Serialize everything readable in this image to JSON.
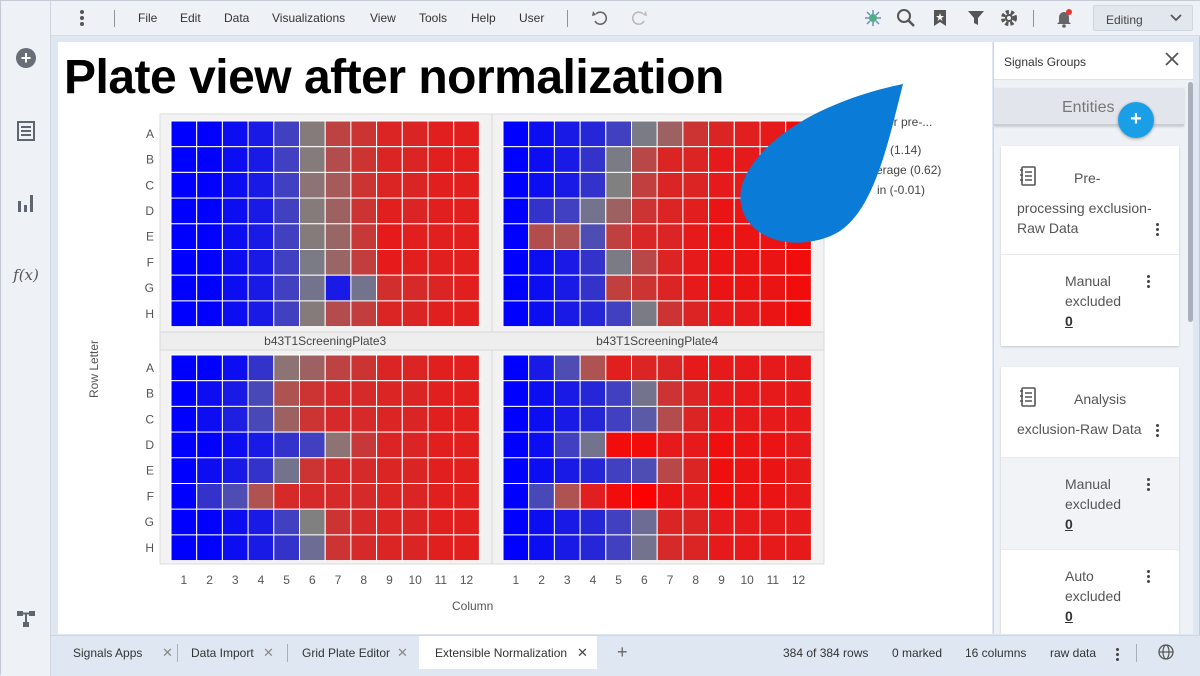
{
  "menu": {
    "items": [
      "File",
      "Edit",
      "Data",
      "Visualizations",
      "View",
      "Tools",
      "Help",
      "User"
    ],
    "mode_label": "Editing"
  },
  "icons": {
    "left": [
      "add-icon",
      "data-table-icon",
      "bar-chart-icon",
      "function-icon",
      "flow-icon"
    ],
    "toolbar": [
      "undo-icon",
      "redo-icon",
      "ai-icon",
      "search-icon",
      "bookmark-icon",
      "filter-icon",
      "settings-icon",
      "notification-icon"
    ],
    "function_glyph": "f(x)"
  },
  "visualization": {
    "title": "Plate view after normalization",
    "y_axis_label": "Row Letter",
    "x_axis_label": "Column",
    "legend_fragments": [
      "er pre-...",
      "(1.14)",
      "erage (0.62)",
      "in (-0.01)"
    ]
  },
  "chart_data": {
    "type": "heatmap",
    "rows": [
      "A",
      "B",
      "C",
      "D",
      "E",
      "F",
      "G",
      "H"
    ],
    "columns": [
      "1",
      "2",
      "3",
      "4",
      "5",
      "6",
      "7",
      "8",
      "9",
      "10",
      "11",
      "12"
    ],
    "color_scale": {
      "min": "#0000ff",
      "mid": "#808080",
      "max": "#ff0000"
    },
    "panels": [
      {
        "label": "",
        "grid": [
          [
            0.0,
            0.0,
            0.05,
            0.1,
            0.25,
            0.52,
            0.74,
            0.8,
            0.86,
            0.86,
            0.88,
            0.88
          ],
          [
            0.0,
            0.0,
            0.05,
            0.1,
            0.25,
            0.52,
            0.7,
            0.8,
            0.86,
            0.86,
            0.88,
            0.88
          ],
          [
            0.0,
            0.0,
            0.05,
            0.1,
            0.25,
            0.55,
            0.65,
            0.8,
            0.86,
            0.86,
            0.88,
            0.88
          ],
          [
            0.0,
            0.0,
            0.05,
            0.1,
            0.25,
            0.52,
            0.62,
            0.8,
            0.88,
            0.86,
            0.88,
            0.88
          ],
          [
            0.0,
            0.0,
            0.05,
            0.1,
            0.25,
            0.52,
            0.6,
            0.78,
            0.9,
            0.88,
            0.88,
            0.88
          ],
          [
            0.0,
            0.0,
            0.05,
            0.1,
            0.25,
            0.48,
            0.6,
            0.76,
            0.9,
            0.88,
            0.88,
            0.88
          ],
          [
            0.0,
            0.0,
            0.05,
            0.1,
            0.25,
            0.45,
            0.1,
            0.45,
            0.82,
            0.84,
            0.86,
            0.88
          ],
          [
            0.0,
            0.0,
            0.05,
            0.1,
            0.25,
            0.52,
            0.7,
            0.76,
            0.86,
            0.86,
            0.88,
            0.88
          ]
        ]
      },
      {
        "label": "",
        "grid": [
          [
            0.0,
            0.05,
            0.1,
            0.15,
            0.25,
            0.48,
            0.62,
            0.8,
            0.86,
            0.88,
            0.9,
            0.95
          ],
          [
            0.0,
            0.05,
            0.1,
            0.2,
            0.48,
            0.72,
            0.86,
            0.86,
            0.9,
            0.9,
            0.92,
            0.95
          ],
          [
            0.0,
            0.05,
            0.1,
            0.2,
            0.5,
            0.75,
            0.86,
            0.86,
            0.9,
            0.9,
            0.92,
            0.95
          ],
          [
            0.0,
            0.2,
            0.25,
            0.45,
            0.62,
            0.8,
            0.86,
            0.88,
            0.92,
            0.92,
            0.92,
            0.95
          ],
          [
            0.0,
            0.7,
            0.68,
            0.3,
            0.75,
            0.85,
            0.86,
            0.9,
            0.92,
            0.92,
            0.92,
            0.95
          ],
          [
            0.0,
            0.05,
            0.1,
            0.2,
            0.48,
            0.72,
            0.86,
            0.9,
            0.92,
            0.92,
            0.92,
            0.95
          ],
          [
            0.0,
            0.05,
            0.1,
            0.2,
            0.75,
            0.8,
            0.86,
            0.9,
            0.92,
            0.92,
            0.92,
            0.95
          ],
          [
            0.0,
            0.05,
            0.1,
            0.15,
            0.25,
            0.48,
            0.8,
            0.86,
            0.9,
            0.9,
            0.92,
            0.95
          ]
        ]
      },
      {
        "label": "b43T1ScreeningPlate3",
        "grid": [
          [
            0.0,
            0.0,
            0.05,
            0.2,
            0.55,
            0.62,
            0.74,
            0.8,
            0.86,
            0.86,
            0.88,
            0.88
          ],
          [
            0.0,
            0.05,
            0.1,
            0.28,
            0.68,
            0.8,
            0.84,
            0.84,
            0.86,
            0.86,
            0.88,
            0.88
          ],
          [
            0.0,
            0.05,
            0.12,
            0.28,
            0.62,
            0.8,
            0.84,
            0.84,
            0.86,
            0.86,
            0.88,
            0.88
          ],
          [
            0.0,
            0.0,
            0.05,
            0.1,
            0.2,
            0.25,
            0.55,
            0.78,
            0.86,
            0.86,
            0.88,
            0.88
          ],
          [
            0.0,
            0.05,
            0.1,
            0.2,
            0.45,
            0.8,
            0.84,
            0.84,
            0.86,
            0.86,
            0.88,
            0.88
          ],
          [
            0.0,
            0.2,
            0.3,
            0.68,
            0.84,
            0.84,
            0.84,
            0.84,
            0.86,
            0.86,
            0.88,
            0.88
          ],
          [
            0.0,
            0.0,
            0.05,
            0.1,
            0.25,
            0.5,
            0.8,
            0.84,
            0.86,
            0.86,
            0.88,
            0.88
          ],
          [
            0.0,
            0.0,
            0.05,
            0.1,
            0.2,
            0.42,
            0.8,
            0.84,
            0.86,
            0.86,
            0.88,
            0.88
          ]
        ]
      },
      {
        "label": "b43T1ScreeningPlate4",
        "grid": [
          [
            0.0,
            0.1,
            0.3,
            0.68,
            0.88,
            0.86,
            0.86,
            0.9,
            0.9,
            0.9,
            0.9,
            0.9
          ],
          [
            0.0,
            0.05,
            0.1,
            0.15,
            0.25,
            0.45,
            0.8,
            0.86,
            0.9,
            0.9,
            0.9,
            0.9
          ],
          [
            0.0,
            0.05,
            0.1,
            0.15,
            0.25,
            0.35,
            0.7,
            0.86,
            0.9,
            0.9,
            0.9,
            0.9
          ],
          [
            0.0,
            0.05,
            0.25,
            0.45,
            0.95,
            0.95,
            0.9,
            0.9,
            0.94,
            0.92,
            0.92,
            0.9
          ],
          [
            0.0,
            0.05,
            0.1,
            0.15,
            0.25,
            0.3,
            0.72,
            0.86,
            0.94,
            0.92,
            0.92,
            0.9
          ],
          [
            0.0,
            0.28,
            0.68,
            0.88,
            0.95,
            1.0,
            0.92,
            0.9,
            0.94,
            0.92,
            0.92,
            0.9
          ],
          [
            0.0,
            0.05,
            0.1,
            0.15,
            0.25,
            0.42,
            0.86,
            0.86,
            0.9,
            0.9,
            0.9,
            0.9
          ],
          [
            0.0,
            0.05,
            0.1,
            0.15,
            0.25,
            0.45,
            0.84,
            0.86,
            0.9,
            0.9,
            0.9,
            0.9
          ]
        ]
      }
    ]
  },
  "signals_groups": {
    "title": "Signals Groups",
    "entities_label": "Entities",
    "add_label": "+",
    "groups": [
      {
        "title_lines": [
          "Pre-",
          "processing exclusion-",
          "Raw Data"
        ],
        "sub_label_lines": [
          "Manual",
          "excluded"
        ],
        "sub_count": "0"
      },
      {
        "title_lines": [
          "Analysis",
          "exclusion-Raw Data"
        ],
        "manual_lines": [
          "Manual",
          "excluded"
        ],
        "manual_count": "0",
        "auto_lines": [
          "Auto",
          "excluded"
        ],
        "auto_count": "0"
      }
    ]
  },
  "tabs": [
    {
      "label": "Signals Apps"
    },
    {
      "label": "Data Import"
    },
    {
      "label": "Grid Plate Editor"
    },
    {
      "label": "Extensible Normalization"
    }
  ],
  "add_tab_label": "+",
  "status": {
    "rows": "384 of 384 rows",
    "marked": "0 marked",
    "columns": "16 columns",
    "table": "raw data"
  },
  "colors": {
    "drop": "#0a7bd6",
    "fab": "#1a9fe6",
    "notification_dot": "#e53935",
    "ai_icon": "#4caf8a"
  }
}
